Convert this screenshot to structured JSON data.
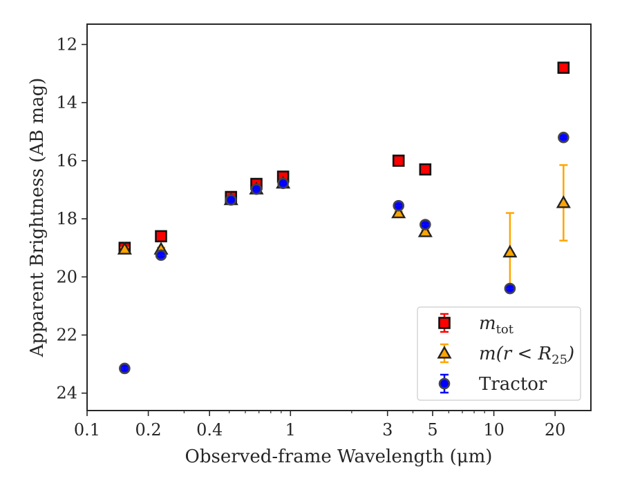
{
  "chart_data": {
    "type": "scatter",
    "title": "",
    "xlabel": "Observed-frame Wavelength (μm)",
    "ylabel": "Apparent Brightness (AB mag)",
    "x_scale": "log",
    "xlim": [
      0.1,
      30
    ],
    "ylim": [
      24.6,
      11.3
    ],
    "y_inverted": true,
    "x_ticks": [
      0.1,
      0.2,
      0.4,
      1,
      3,
      5,
      10,
      20
    ],
    "x_tick_labels": [
      "0.1",
      "0.2",
      "0.4",
      "1",
      "3",
      "5",
      "10",
      "20"
    ],
    "y_ticks": [
      12,
      14,
      16,
      18,
      20,
      22,
      24
    ],
    "y_tick_labels": [
      "12",
      "14",
      "16",
      "18",
      "20",
      "22",
      "24"
    ],
    "grid": false,
    "legend_position": "lower right",
    "series": [
      {
        "name": "m_tot",
        "marker": "square",
        "color": "#ff0000",
        "errorbar_color": "#ff0000",
        "points": [
          {
            "x": 0.153,
            "y": 19.0,
            "err": 0.12
          },
          {
            "x": 0.231,
            "y": 18.6,
            "err": 0.08
          },
          {
            "x": 0.51,
            "y": 17.25,
            "err": 0.07
          },
          {
            "x": 0.68,
            "y": 16.8,
            "err": 0.07
          },
          {
            "x": 0.92,
            "y": 16.55,
            "err": 0.07
          },
          {
            "x": 3.4,
            "y": 16.0,
            "err": 0.05
          },
          {
            "x": 4.6,
            "y": 16.3,
            "err": 0.05
          },
          {
            "x": 22.0,
            "y": 12.8,
            "err": 0.05
          }
        ]
      },
      {
        "name": "m(r<R25)",
        "marker": "triangle",
        "color": "#ffa500",
        "errorbar_color": "#ffa500",
        "points": [
          {
            "x": 0.153,
            "y": 19.05,
            "err": 0.06
          },
          {
            "x": 0.231,
            "y": 19.05,
            "err": 0.06
          },
          {
            "x": 0.51,
            "y": 17.35,
            "err": 0.05
          },
          {
            "x": 0.68,
            "y": 16.98,
            "err": 0.05
          },
          {
            "x": 0.92,
            "y": 16.78,
            "err": 0.05
          },
          {
            "x": 3.4,
            "y": 17.8,
            "err": 0.05
          },
          {
            "x": 4.6,
            "y": 18.45,
            "err": 0.05
          },
          {
            "x": 12.0,
            "y": 19.15,
            "err": 1.35
          },
          {
            "x": 22.0,
            "y": 17.45,
            "err": 1.3
          }
        ]
      },
      {
        "name": "Tractor",
        "marker": "circle",
        "color": "#0000ff",
        "errorbar_color": "#0000ff",
        "points": [
          {
            "x": 0.153,
            "y": 23.15,
            "err": 0.08
          },
          {
            "x": 0.231,
            "y": 19.25,
            "err": 0.06
          },
          {
            "x": 0.51,
            "y": 17.35,
            "err": 0.05
          },
          {
            "x": 0.68,
            "y": 16.98,
            "err": 0.05
          },
          {
            "x": 0.92,
            "y": 16.78,
            "err": 0.05
          },
          {
            "x": 3.4,
            "y": 17.55,
            "err": 0.05
          },
          {
            "x": 4.6,
            "y": 18.2,
            "err": 0.05
          },
          {
            "x": 12.0,
            "y": 20.4,
            "err": 0.06
          },
          {
            "x": 22.0,
            "y": 15.2,
            "err": 0.05
          }
        ]
      }
    ],
    "legend": {
      "entries": [
        {
          "label_main": "m",
          "label_sub": "tot",
          "label_full": "m_tot"
        },
        {
          "label_main": "m(r < R",
          "label_sub": "25",
          "label_end": ")",
          "label_full": "m(r<R25)"
        },
        {
          "label_main": "Tractor",
          "label_sub": "",
          "label_full": "Tractor"
        }
      ]
    }
  }
}
